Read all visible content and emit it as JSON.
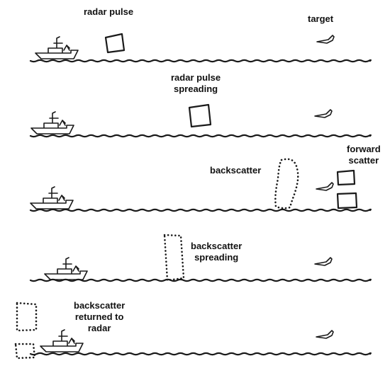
{
  "panels": [
    {
      "labels": {
        "pulse": "radar pulse",
        "target": "target"
      }
    },
    {
      "labels": {
        "pulse": "radar pulse\nspreading"
      }
    },
    {
      "labels": {
        "backscatter": "backscatter",
        "forward": "forward\nscatter"
      }
    },
    {
      "labels": {
        "backscatter": "backscatter\nspreading"
      }
    },
    {
      "labels": {
        "returned": "backscatter\nreturned to\nradar"
      }
    }
  ],
  "colors": {
    "ink": "#1a1a1a",
    "background": "#ffffff"
  },
  "icons": [
    "ship-icon",
    "target-aircraft-icon",
    "radar-pulse-box",
    "backscatter-dotted-shape",
    "sea-wave-line"
  ]
}
